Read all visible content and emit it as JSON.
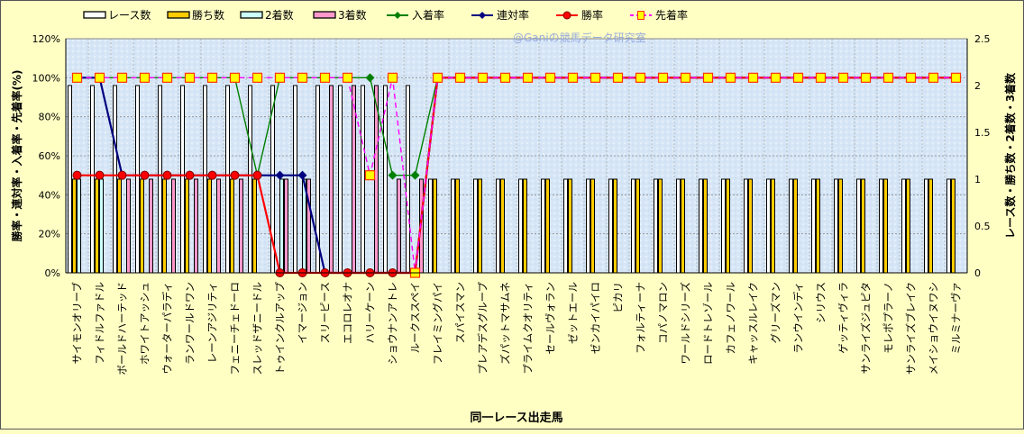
{
  "chart_data": {
    "type": "bar",
    "watermark": "@Ganiの競馬データ研究室",
    "xlabel": "同一レース出走馬",
    "ylabel": "勝率・連対率・入着率・先着率(%)",
    "y2label": "レース数・勝ち数・2着数・3着数",
    "ylim": [
      0,
      120
    ],
    "y2lim": [
      0,
      2.5
    ],
    "yticks": [
      "0%",
      "20%",
      "40%",
      "60%",
      "80%",
      "100%",
      "120%"
    ],
    "y2ticks": [
      "0",
      "0.5",
      "1",
      "1.5",
      "2",
      "2.5"
    ],
    "legend_position": "top",
    "grid": true,
    "categories": [
      "サイモンオリーブ",
      "フィドルファドル",
      "ボールドハーテッド",
      "ホワイトアッシュ",
      "ウォーターパラディ",
      "ランワールドワン",
      "レーンアジリティ",
      "フェニーチェドーロ",
      "スレッドザニードル",
      "トゥインクルアップ",
      "イマージョン",
      "スリーピース",
      "エコロレオナ",
      "ハリーケーン",
      "ショウナンアトレ",
      "ルークススペイ",
      "フレイミングパイ",
      "スパイスマン",
      "プレアデスグループ",
      "ズパットマサムネ",
      "プライムクオリティ",
      "セールヴォラン",
      "ゼットエール",
      "ゼンカイパイロ",
      "ピカリ",
      "フォルティーナ",
      "コパノマロン",
      "ワールドシリーズ",
      "ロードトレゾール",
      "カフェノワール",
      "キャッスルレイク",
      "グリーズマン",
      "ランウインディ",
      "シリウス",
      "ゲッティヴィラ",
      "サンライズジュピタ",
      "モレポプラーノ",
      "サンライズブレイク",
      "メイショウイヌワシ",
      "ミルミナーヴァ"
    ],
    "bar_series": [
      {
        "name": "レース数",
        "axis": "right",
        "color": "#ffffff",
        "values": [
          2,
          2,
          2,
          2,
          2,
          2,
          2,
          2,
          2,
          2,
          2,
          2,
          2,
          2,
          2,
          2,
          1,
          1,
          1,
          1,
          1,
          1,
          1,
          1,
          1,
          1,
          1,
          1,
          1,
          1,
          1,
          1,
          1,
          1,
          1,
          1,
          1,
          1,
          1,
          1
        ]
      },
      {
        "name": "勝ち数",
        "axis": "right",
        "color": "#ffcc00",
        "values": [
          1,
          1,
          1,
          1,
          1,
          1,
          1,
          1,
          1,
          0,
          0,
          0,
          0,
          0,
          0,
          0,
          1,
          1,
          1,
          1,
          1,
          1,
          1,
          1,
          1,
          1,
          1,
          1,
          1,
          1,
          1,
          1,
          1,
          1,
          1,
          1,
          1,
          1,
          1,
          1
        ]
      },
      {
        "name": "2着数",
        "axis": "right",
        "color": "#ccffff",
        "values": [
          1,
          1,
          0,
          0,
          0,
          0,
          0,
          0,
          0,
          1,
          1,
          0,
          0,
          0,
          0,
          0,
          0,
          0,
          0,
          0,
          0,
          0,
          0,
          0,
          0,
          0,
          0,
          0,
          0,
          0,
          0,
          0,
          0,
          0,
          0,
          0,
          0,
          0,
          0,
          0
        ]
      },
      {
        "name": "3着数",
        "axis": "right",
        "color": "#ff99cc",
        "values": [
          0,
          0,
          1,
          1,
          1,
          1,
          1,
          1,
          0,
          1,
          1,
          2,
          2,
          2,
          1,
          1,
          0,
          0,
          0,
          0,
          0,
          0,
          0,
          0,
          0,
          0,
          0,
          0,
          0,
          0,
          0,
          0,
          0,
          0,
          0,
          0,
          0,
          0,
          0,
          0
        ]
      }
    ],
    "line_series": [
      {
        "name": "入着率",
        "axis": "left",
        "color": "#008000",
        "marker": "diamond",
        "values": [
          100,
          100,
          100,
          100,
          100,
          100,
          100,
          100,
          50,
          100,
          100,
          100,
          100,
          100,
          50,
          50,
          100,
          100,
          100,
          100,
          100,
          100,
          100,
          100,
          100,
          100,
          100,
          100,
          100,
          100,
          100,
          100,
          100,
          100,
          100,
          100,
          100,
          100,
          100,
          100
        ]
      },
      {
        "name": "連対率",
        "axis": "left",
        "color": "#000080",
        "marker": "diamond",
        "values": [
          100,
          100,
          50,
          50,
          50,
          50,
          50,
          50,
          50,
          50,
          50,
          0,
          0,
          0,
          0,
          0,
          100,
          100,
          100,
          100,
          100,
          100,
          100,
          100,
          100,
          100,
          100,
          100,
          100,
          100,
          100,
          100,
          100,
          100,
          100,
          100,
          100,
          100,
          100,
          100
        ]
      },
      {
        "name": "勝率",
        "axis": "left",
        "color": "#ff0000",
        "marker": "circle",
        "values": [
          50,
          50,
          50,
          50,
          50,
          50,
          50,
          50,
          50,
          0,
          0,
          0,
          0,
          0,
          0,
          0,
          100,
          100,
          100,
          100,
          100,
          100,
          100,
          100,
          100,
          100,
          100,
          100,
          100,
          100,
          100,
          100,
          100,
          100,
          100,
          100,
          100,
          100,
          100,
          100
        ]
      },
      {
        "name": "先着率",
        "axis": "left",
        "color": "#ff00ff",
        "marker": "square",
        "dashed": true,
        "values": [
          100,
          100,
          100,
          100,
          100,
          100,
          100,
          100,
          100,
          100,
          100,
          100,
          100,
          50,
          100,
          0,
          100,
          100,
          100,
          100,
          100,
          100,
          100,
          100,
          100,
          100,
          100,
          100,
          100,
          100,
          100,
          100,
          100,
          100,
          100,
          100,
          100,
          100,
          100,
          100
        ]
      }
    ]
  }
}
